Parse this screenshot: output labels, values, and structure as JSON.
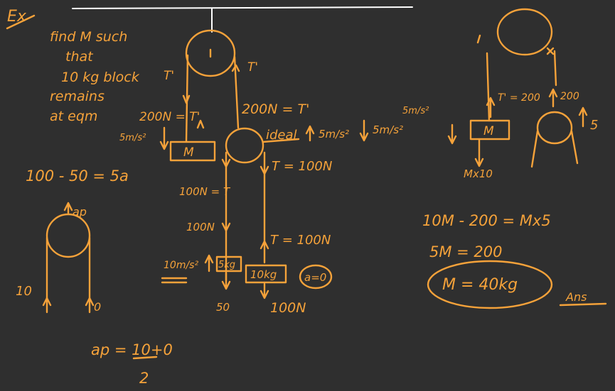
{
  "canvas": {
    "background": "#2f2f2f",
    "ink": "#f5a23a",
    "rule_color": "#ffffff"
  },
  "notes": {
    "ex": "Ex",
    "problem": [
      "find M such",
      "that",
      "10 kg block",
      "remains",
      "at eqm"
    ],
    "t_prime_left": "T'",
    "t_prime_right": "T'",
    "eq_200_left": "200N = T'",
    "eq_200_right": "200N = T'",
    "accel_left": "5m/s²",
    "block_m": "M",
    "ideal": "ideal",
    "accel_ideal": "5m/s²",
    "accel_right": "5m/s²",
    "t_100_right": "T = 100N",
    "t_100_left": "100N = T",
    "t_100_lower": "100N",
    "accel_10": "10m/s²",
    "block_5kg": "5kg",
    "block_10kg": "10kg",
    "a_zero": "a=0",
    "force_50": "50",
    "force_100": "100N",
    "t_100_mid": "T = 100N",
    "eq_main": "100 - 50 = 5a",
    "ap_label": "ap",
    "ten_label": "10",
    "zero_label": "0",
    "ap_eq_top": "ap = 10+0",
    "ap_eq_bottom": "2",
    "m_block_right": "M",
    "t_prime_200": "T' = 200",
    "arrow_200": "200",
    "mx10": "Mx10",
    "accel_5": "5",
    "eq_right": "10M - 200 = Mx5",
    "eq_5m": "5M = 200",
    "answer": "M = 40kg",
    "ans": "Ans",
    "accel_up_right": "5m/s²"
  }
}
